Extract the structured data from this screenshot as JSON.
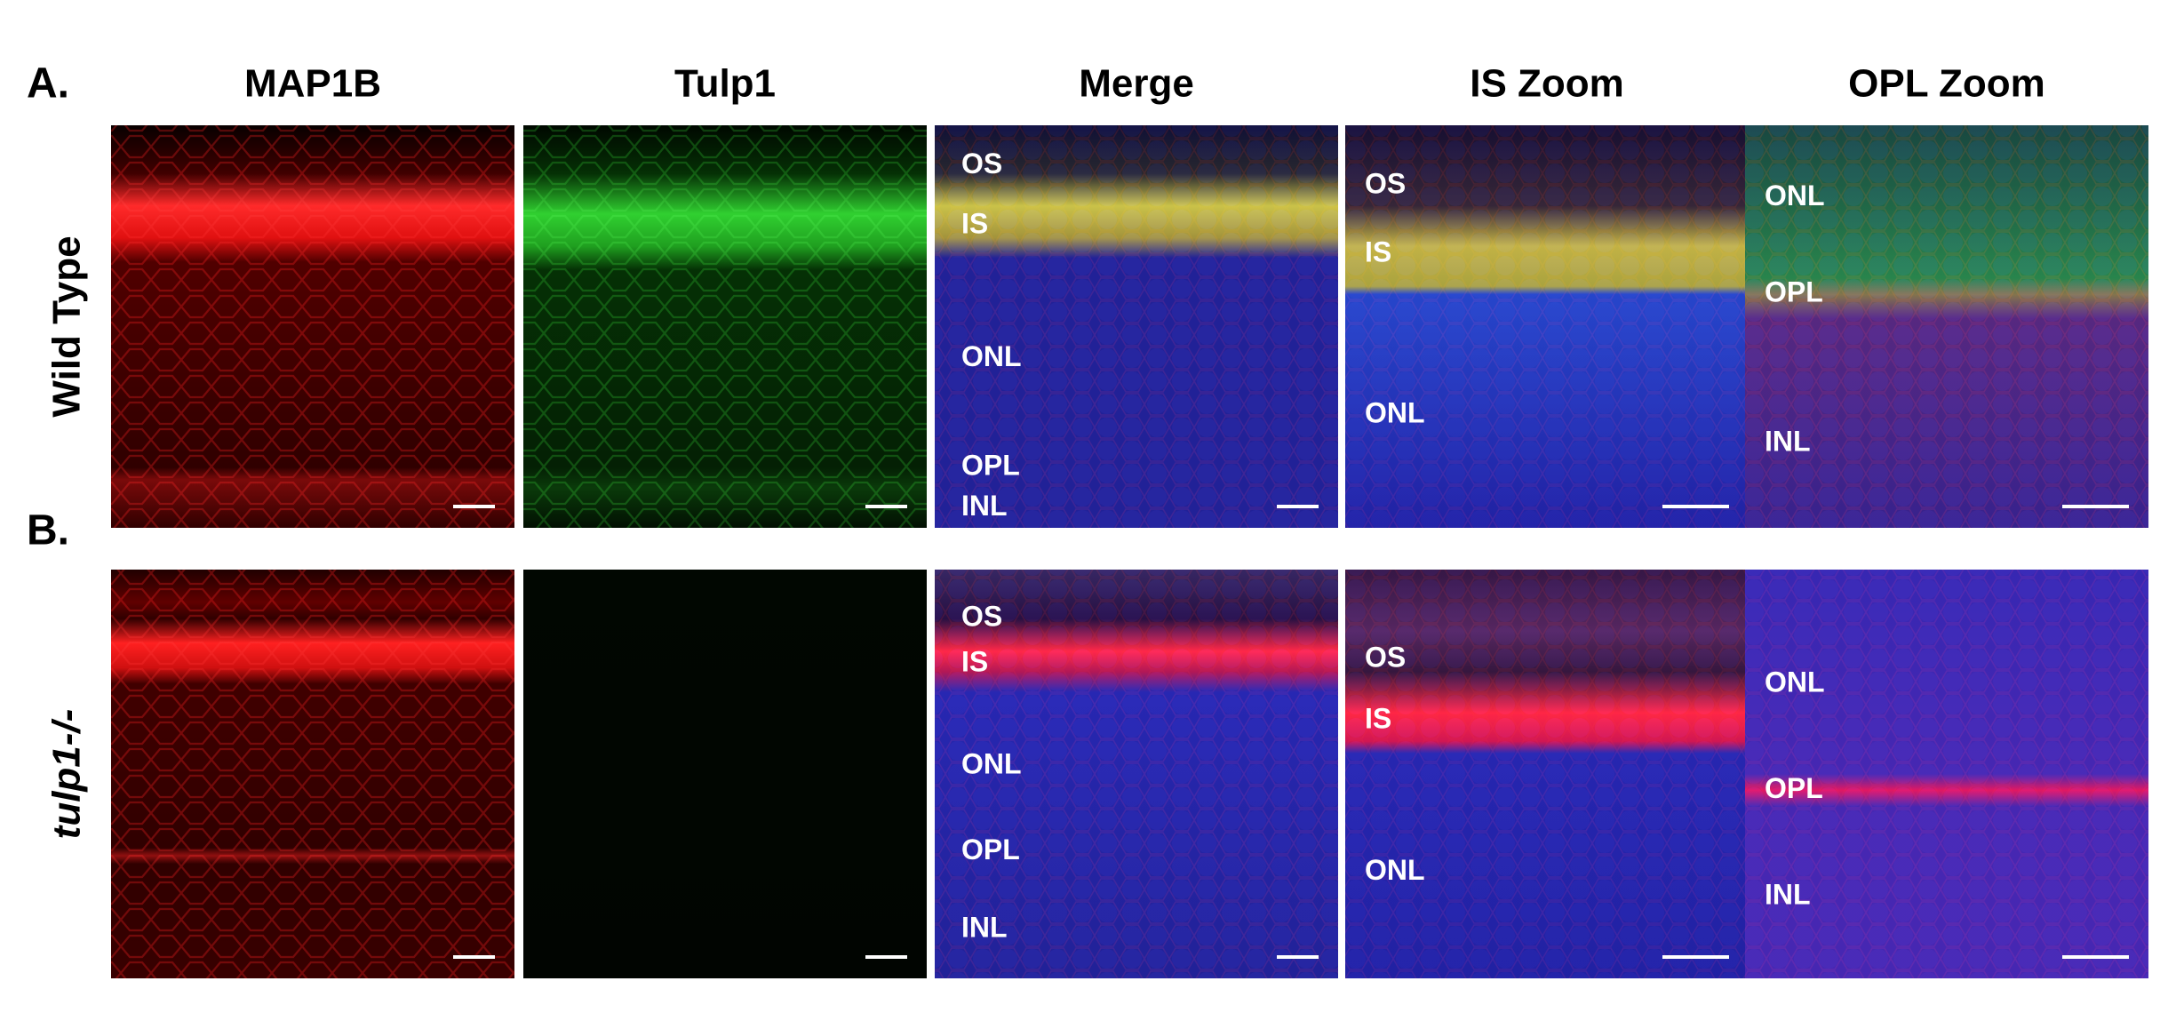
{
  "panel_labels": [
    "A.",
    "B."
  ],
  "columns": [
    "MAP1B",
    "Tulp1",
    "Merge",
    "IS Zoom",
    "OPL Zoom"
  ],
  "rows": [
    {
      "label": "Wild Type",
      "layer_labels": [
        [],
        [],
        [
          "OS",
          "IS",
          "ONL",
          "OPL",
          "INL"
        ],
        [
          "OS",
          "IS",
          "ONL"
        ],
        [
          "ONL",
          "OPL",
          "INL"
        ]
      ]
    },
    {
      "label": "tulp1-/-",
      "layer_labels": [
        [],
        [],
        [
          "OS",
          "IS",
          "ONL",
          "OPL",
          "INL"
        ],
        [
          "OS",
          "IS",
          "ONL"
        ],
        [
          "ONL",
          "OPL",
          "INL"
        ]
      ]
    }
  ]
}
